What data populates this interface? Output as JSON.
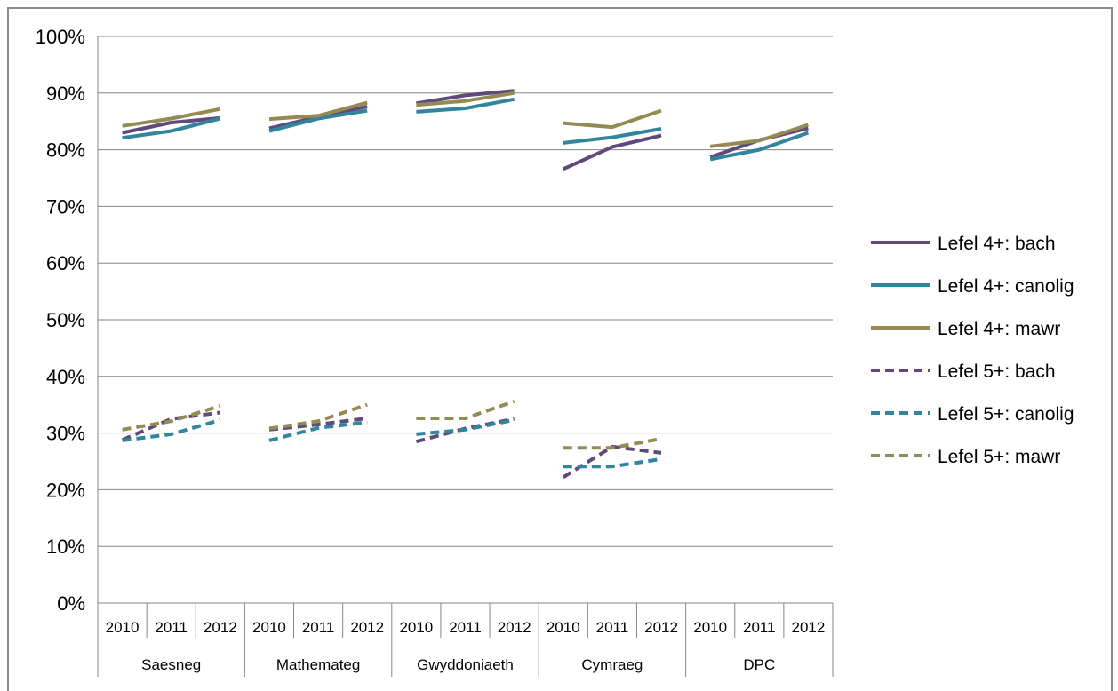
{
  "chart_data": {
    "type": "line",
    "title": "",
    "xlabel": "",
    "ylabel": "",
    "ylim": [
      0,
      100
    ],
    "y_ticks": [
      "0%",
      "10%",
      "20%",
      "30%",
      "40%",
      "50%",
      "60%",
      "70%",
      "80%",
      "90%",
      "100%"
    ],
    "groups": [
      "Saesneg",
      "Mathemateg",
      "Gwyddoniaeth",
      "Cymraeg",
      "DPC"
    ],
    "years": [
      "2010",
      "2011",
      "2012"
    ],
    "grid": true,
    "legend_position": "right",
    "series": [
      {
        "name": "Lefel 4+: bach",
        "color": "#604a7b",
        "dash": "solid",
        "values": [
          [
            83.0,
            84.8,
            85.6
          ],
          [
            83.8,
            85.8,
            87.6
          ],
          [
            88.2,
            89.6,
            90.4
          ],
          [
            76.6,
            80.5,
            82.5
          ],
          [
            78.7,
            81.7,
            83.8
          ]
        ]
      },
      {
        "name": "Lefel 4+: canolig",
        "color": "#31859c",
        "dash": "solid",
        "values": [
          [
            82.1,
            83.3,
            85.5
          ],
          [
            83.3,
            85.5,
            86.9
          ],
          [
            86.7,
            87.3,
            88.9
          ],
          [
            81.2,
            82.2,
            83.7
          ],
          [
            78.3,
            80.0,
            83.0
          ]
        ]
      },
      {
        "name": "Lefel 4+: mawr",
        "color": "#948a54",
        "dash": "solid",
        "values": [
          [
            84.2,
            85.5,
            87.2
          ],
          [
            85.4,
            86.0,
            88.3
          ],
          [
            87.9,
            88.6,
            90.0
          ],
          [
            84.7,
            84.0,
            86.9
          ],
          [
            80.6,
            81.6,
            84.4
          ]
        ]
      },
      {
        "name": "Lefel 5+: bach",
        "color": "#604a7b",
        "dash": "dashed",
        "values": [
          [
            28.8,
            32.5,
            33.6
          ],
          [
            30.6,
            31.5,
            32.6
          ],
          [
            28.5,
            30.8,
            32.5
          ],
          [
            22.2,
            27.6,
            26.5
          ],
          null
        ]
      },
      {
        "name": "Lefel 5+: canolig",
        "color": "#31859c",
        "dash": "dashed",
        "values": [
          [
            28.7,
            29.8,
            32.3
          ],
          [
            28.7,
            30.9,
            31.9
          ],
          [
            29.8,
            30.6,
            32.3
          ],
          [
            24.1,
            24.1,
            25.4
          ],
          null
        ]
      },
      {
        "name": "Lefel 5+: mawr",
        "color": "#948a54",
        "dash": "dashed",
        "values": [
          [
            30.6,
            32.1,
            34.8
          ],
          [
            30.8,
            32.1,
            35.0
          ],
          [
            32.6,
            32.6,
            35.6
          ],
          [
            27.4,
            27.4,
            29.0
          ],
          null
        ]
      }
    ]
  }
}
